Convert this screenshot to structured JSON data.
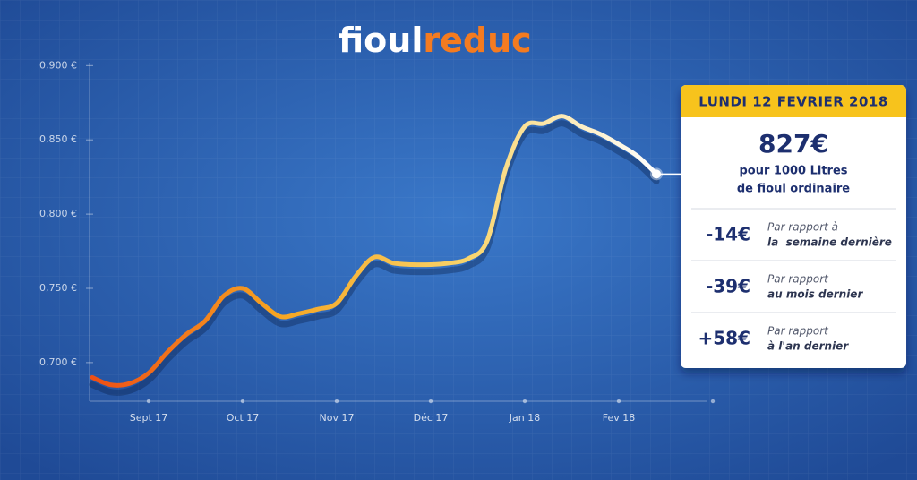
{
  "chart_data": {
    "type": "line",
    "logo": [
      "fioul",
      "reduc"
    ],
    "categories": [
      null,
      null,
      null,
      "Sept 17",
      null,
      null,
      null,
      null,
      "Oct 17",
      null,
      null,
      null,
      null,
      "Nov 17",
      null,
      null,
      null,
      null,
      "Déc 17",
      null,
      null,
      null,
      null,
      "Jan 18",
      null,
      null,
      null,
      null,
      "Fev 18",
      null,
      null,
      null,
      null,
      null
    ],
    "values": [
      0.69,
      0.685,
      0.686,
      0.693,
      0.707,
      0.719,
      0.728,
      0.745,
      0.75,
      0.74,
      0.731,
      0.733,
      0.736,
      0.74,
      0.758,
      0.771,
      0.767,
      0.766,
      0.766,
      0.767,
      0.77,
      0.782,
      0.831,
      0.859,
      0.861,
      0.866,
      0.859,
      0.854,
      0.847,
      0.839,
      0.827,
      null,
      null,
      null
    ],
    "line_gradient": [
      "#ee4f14",
      "#f6a623",
      "#f9d46b",
      "#ffffff"
    ],
    "ylim": [
      0.674,
      0.902
    ],
    "yticks": [
      {
        "value": 0.9,
        "label": "0,900 €"
      },
      {
        "value": 0.85,
        "label": "0,850 €"
      },
      {
        "value": 0.8,
        "label": "0,800 €"
      },
      {
        "value": 0.75,
        "label": "0,750 €"
      },
      {
        "value": 0.7,
        "label": "0,700 €"
      }
    ],
    "callout": {
      "date": "LUNDI 12 FEVRIER 2018",
      "price": "827€",
      "lines": [
        "pour 1000 Litres",
        "de fioul ordinaire"
      ],
      "changes": [
        {
          "value": "-14€",
          "lines": [
            "Par rapport à",
            "la  semaine dernière"
          ]
        },
        {
          "value": "-39€",
          "lines": [
            "Par rapport",
            "au mois dernier"
          ]
        },
        {
          "value": "+58€",
          "lines": [
            "Par rapport",
            "à l'an dernier"
          ]
        }
      ]
    }
  }
}
